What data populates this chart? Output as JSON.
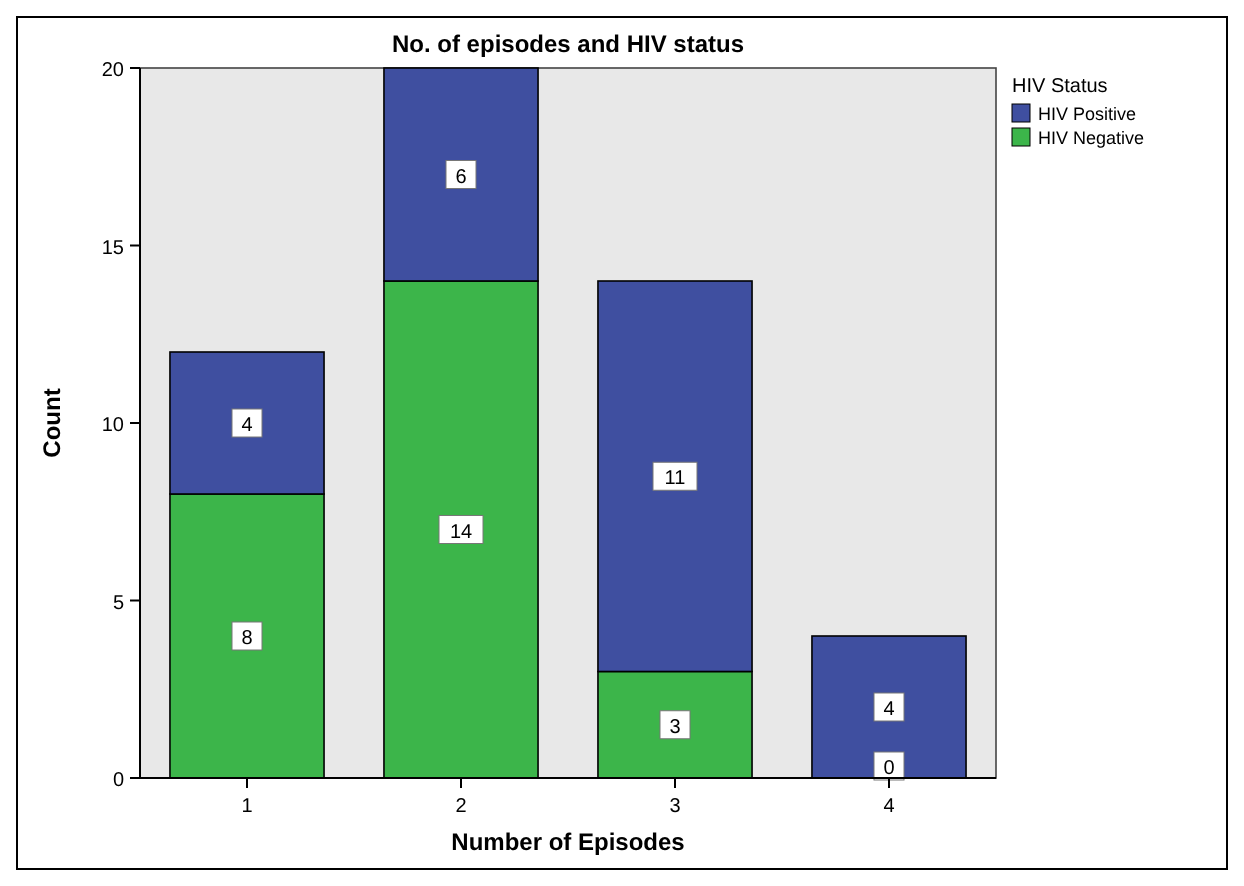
{
  "chart_data": {
    "type": "bar",
    "title": "No. of episodes and HIV status",
    "xlabel": "Number of Episodes",
    "ylabel": "Count",
    "legend_title": "HIV Status",
    "categories": [
      "1",
      "2",
      "3",
      "4"
    ],
    "stacked": true,
    "legend": "right",
    "annotations": [
      {
        "text": "0",
        "x": "4",
        "y": 0
      }
    ],
    "ylim": [
      0,
      20
    ],
    "yticks": [
      0,
      5,
      10,
      15,
      20
    ],
    "series": [
      {
        "name": "HIV Negative",
        "color": "#3cb54a",
        "values": [
          8,
          14,
          3,
          0
        ],
        "value_labels": [
          "8",
          "14",
          "3",
          null
        ]
      },
      {
        "name": "HIV Positive",
        "color": "#3f4fa0",
        "values": [
          4,
          6,
          11,
          4
        ],
        "value_labels": [
          "4",
          "6",
          "11",
          "4"
        ]
      }
    ]
  }
}
